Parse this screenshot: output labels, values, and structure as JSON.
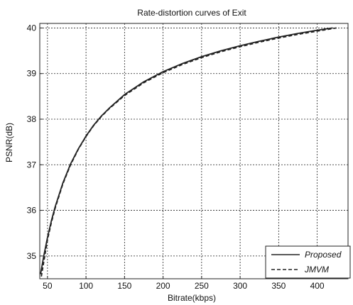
{
  "chart_data": {
    "type": "line",
    "title": "Rate-distortion curves of Exit",
    "xlabel": "Bitrate(kbps)",
    "ylabel": "PSNR(dB)",
    "xlim": [
      40,
      440
    ],
    "ylim": [
      34.5,
      40.1
    ],
    "xticks": [
      50,
      100,
      150,
      200,
      250,
      300,
      350,
      400
    ],
    "yticks": [
      35,
      36,
      37,
      38,
      39,
      40
    ],
    "grid": true,
    "legend_position": "bottom-right",
    "series": [
      {
        "name": "Proposed",
        "style": "solid",
        "x": [
          41,
          45,
          50,
          55,
          60,
          70,
          80,
          90,
          100,
          110,
          120,
          130,
          150,
          175,
          200,
          225,
          250,
          275,
          300,
          325,
          350,
          375,
          400,
          420
        ],
        "y": [
          34.6,
          34.98,
          35.4,
          35.77,
          36.08,
          36.6,
          37.02,
          37.35,
          37.63,
          37.87,
          38.07,
          38.24,
          38.54,
          38.82,
          39.04,
          39.22,
          39.37,
          39.5,
          39.61,
          39.71,
          39.8,
          39.88,
          39.95,
          40.0
        ],
        "color": "#222222"
      },
      {
        "name": "JMVM",
        "style": "dashed",
        "x": [
          42,
          46,
          50,
          55,
          60,
          70,
          80,
          90,
          100,
          110,
          120,
          130,
          150,
          175,
          200,
          225,
          250,
          275,
          300,
          325,
          350,
          375,
          400,
          425
        ],
        "y": [
          34.55,
          34.95,
          35.35,
          35.73,
          36.05,
          36.58,
          37.0,
          37.34,
          37.62,
          37.86,
          38.06,
          38.23,
          38.52,
          38.8,
          39.02,
          39.2,
          39.35,
          39.48,
          39.59,
          39.69,
          39.78,
          39.86,
          39.93,
          40.0
        ],
        "color": "#222222"
      }
    ]
  }
}
